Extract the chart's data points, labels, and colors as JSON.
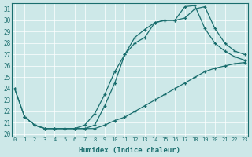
{
  "title": "",
  "xlabel": "Humidex (Indice chaleur)",
  "ylabel": "",
  "xlim": [
    -0.3,
    23.3
  ],
  "ylim": [
    19.8,
    31.5
  ],
  "xticks": [
    0,
    1,
    2,
    3,
    4,
    5,
    6,
    7,
    8,
    9,
    10,
    11,
    12,
    13,
    14,
    15,
    16,
    17,
    18,
    19,
    20,
    21,
    22,
    23
  ],
  "yticks": [
    20,
    21,
    22,
    23,
    24,
    25,
    26,
    27,
    28,
    29,
    30,
    31
  ],
  "bg_color": "#cde8e8",
  "line_color": "#1a6e6e",
  "line1_x": [
    0,
    1,
    2,
    3,
    4,
    5,
    6,
    7,
    8,
    9,
    10,
    11,
    12,
    13,
    14,
    15,
    16,
    17,
    18,
    19,
    20,
    21,
    22,
    23
  ],
  "line1_y": [
    24.0,
    21.5,
    20.8,
    20.5,
    20.5,
    20.5,
    20.5,
    20.5,
    20.5,
    20.8,
    21.2,
    21.5,
    22.0,
    22.5,
    23.0,
    23.5,
    24.0,
    24.5,
    25.0,
    25.5,
    25.8,
    26.0,
    26.2,
    26.3
  ],
  "line2_x": [
    1,
    2,
    3,
    4,
    5,
    6,
    7,
    8,
    9,
    10,
    11,
    12,
    13,
    14,
    15,
    16,
    17,
    18,
    19,
    20,
    21,
    22,
    23
  ],
  "line2_y": [
    21.5,
    20.8,
    20.5,
    20.5,
    20.5,
    20.5,
    20.5,
    20.8,
    22.5,
    24.5,
    27.0,
    28.5,
    29.2,
    29.8,
    30.0,
    30.0,
    30.2,
    31.0,
    31.2,
    29.3,
    28.0,
    27.3,
    27.0
  ],
  "line3_x": [
    0,
    1,
    2,
    3,
    4,
    5,
    6,
    7,
    8,
    9,
    10,
    11,
    12,
    13,
    14,
    15,
    16,
    17,
    18,
    19,
    20,
    21,
    22,
    23
  ],
  "line3_y": [
    24.0,
    21.5,
    20.8,
    20.5,
    20.5,
    20.5,
    20.5,
    20.8,
    21.8,
    23.5,
    25.5,
    27.0,
    28.0,
    28.5,
    29.8,
    30.0,
    30.0,
    31.2,
    31.3,
    29.3,
    28.0,
    27.3,
    26.8,
    26.5
  ]
}
